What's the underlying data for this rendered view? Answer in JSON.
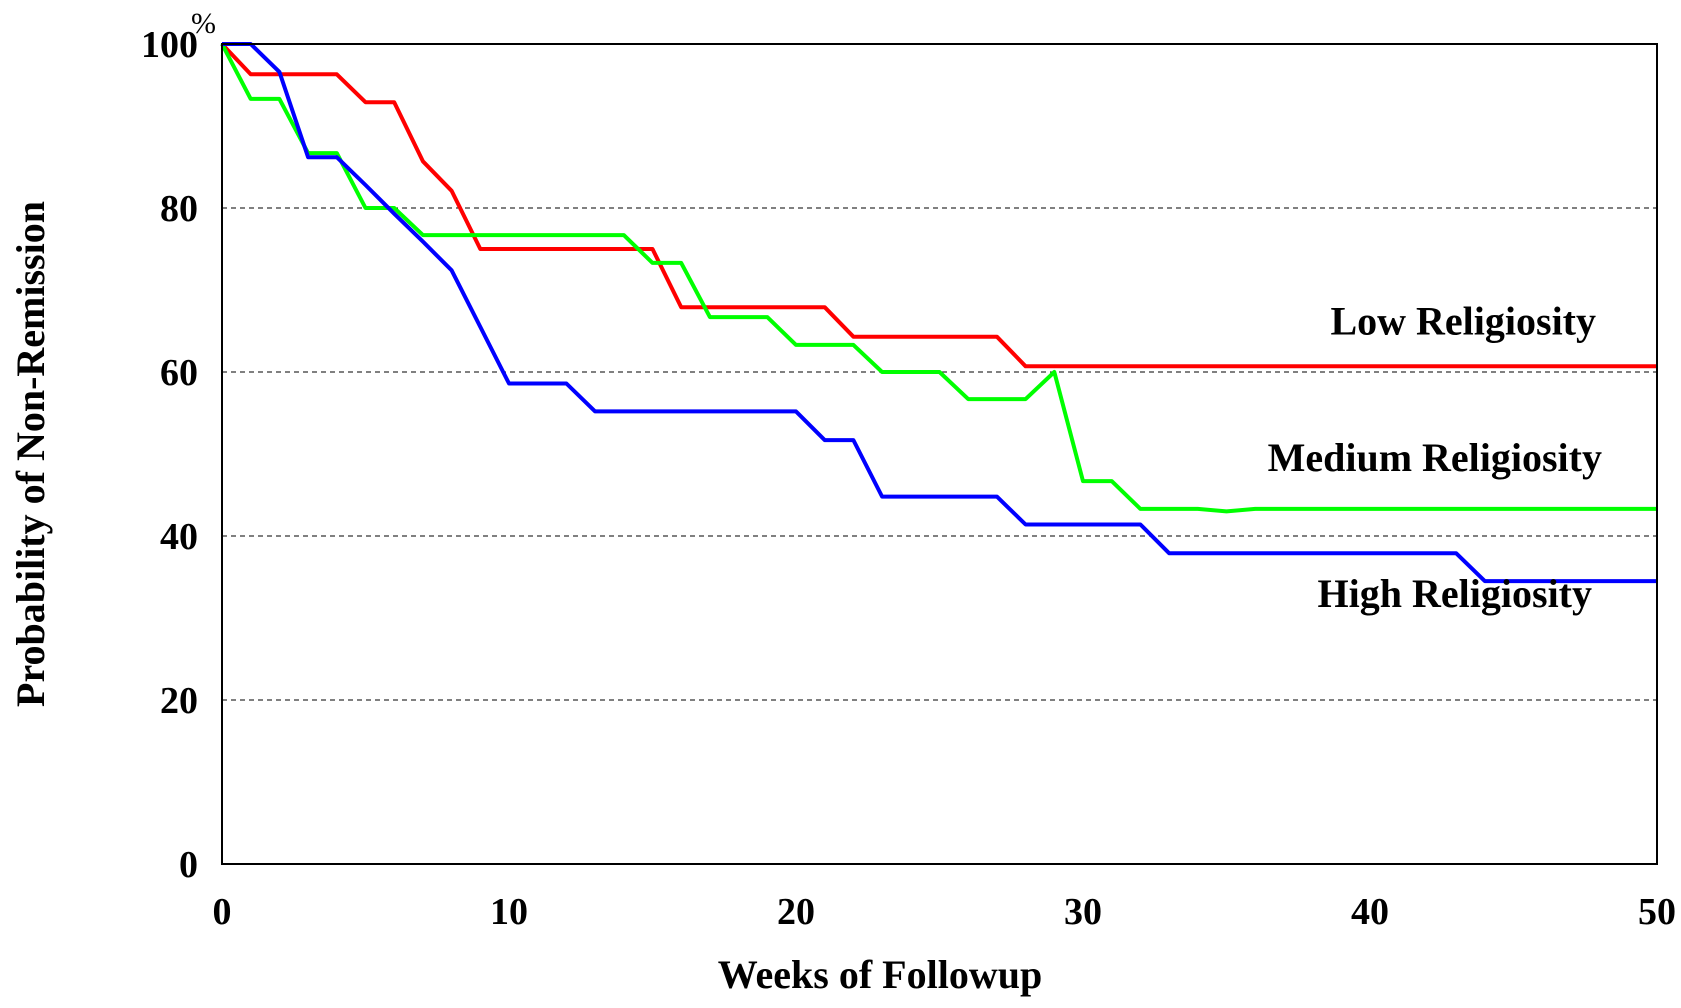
{
  "chart_data": {
    "type": "line",
    "xlabel": "Weeks of Followup",
    "ylabel": "Probability of Non-Remission",
    "y_unit": "%",
    "xlim": [
      0,
      50
    ],
    "ylim": [
      0,
      100
    ],
    "x_ticks": [
      "0",
      "10",
      "20",
      "30",
      "40",
      "50"
    ],
    "y_ticks": [
      "0",
      "20",
      "40",
      "60",
      "80",
      "100"
    ],
    "grid": "horizontal dashed",
    "series": [
      {
        "name": "Low Religiosity",
        "color": "#ff0000",
        "x": [
          0,
          1,
          2,
          3,
          4,
          5,
          6,
          7,
          8,
          9,
          10,
          12,
          14,
          15,
          16,
          17,
          18,
          20,
          21,
          22,
          24,
          26,
          27,
          28,
          30,
          35,
          40,
          45,
          50
        ],
        "y": [
          100,
          96.3,
          96.3,
          96.3,
          96.3,
          92.9,
          92.9,
          85.7,
          82.1,
          75,
          75,
          75,
          75,
          75,
          67.9,
          67.9,
          67.9,
          67.9,
          67.9,
          64.3,
          64.3,
          64.3,
          64.3,
          60.7,
          60.7,
          60.7,
          60.7,
          60.7,
          60.7
        ]
      },
      {
        "name": "Medium Religiosity",
        "color": "#00ff00",
        "x": [
          0,
          1,
          2,
          3,
          4,
          5,
          6,
          7,
          8,
          10,
          12,
          14,
          15,
          16,
          17,
          18,
          19,
          20,
          21,
          22,
          23,
          24,
          25,
          26,
          27,
          28,
          29,
          30,
          31,
          32,
          33,
          34,
          35,
          36,
          40,
          45,
          50
        ],
        "y": [
          100,
          93.3,
          93.3,
          86.7,
          86.7,
          80,
          80,
          76.7,
          76.7,
          76.7,
          76.7,
          76.7,
          73.3,
          73.3,
          66.7,
          66.7,
          66.7,
          63.3,
          63.3,
          63.3,
          60,
          60,
          60,
          56.7,
          56.7,
          56.7,
          60,
          46.7,
          46.7,
          43.3,
          43.3,
          43.3,
          43,
          43.3,
          43.3,
          43.3,
          43.3
        ]
      },
      {
        "name": "High Religiosity",
        "color": "#0000ff",
        "x": [
          0,
          1,
          2,
          3,
          4,
          5,
          6,
          7,
          8,
          9,
          10,
          11,
          12,
          13,
          14,
          16,
          18,
          20,
          21,
          22,
          23,
          24,
          26,
          27,
          28,
          30,
          32,
          33,
          35,
          40,
          43,
          44,
          45,
          50
        ],
        "y": [
          100,
          100,
          96.6,
          86.2,
          86.2,
          82.8,
          79.3,
          75.9,
          72.4,
          65.5,
          58.6,
          58.6,
          58.6,
          55.2,
          55.2,
          55.2,
          55.2,
          55.2,
          51.7,
          51.7,
          44.8,
          44.8,
          44.8,
          44.8,
          41.4,
          41.4,
          41.4,
          37.9,
          37.9,
          37.9,
          37.9,
          34.5,
          34.5,
          34.5
        ]
      }
    ]
  }
}
